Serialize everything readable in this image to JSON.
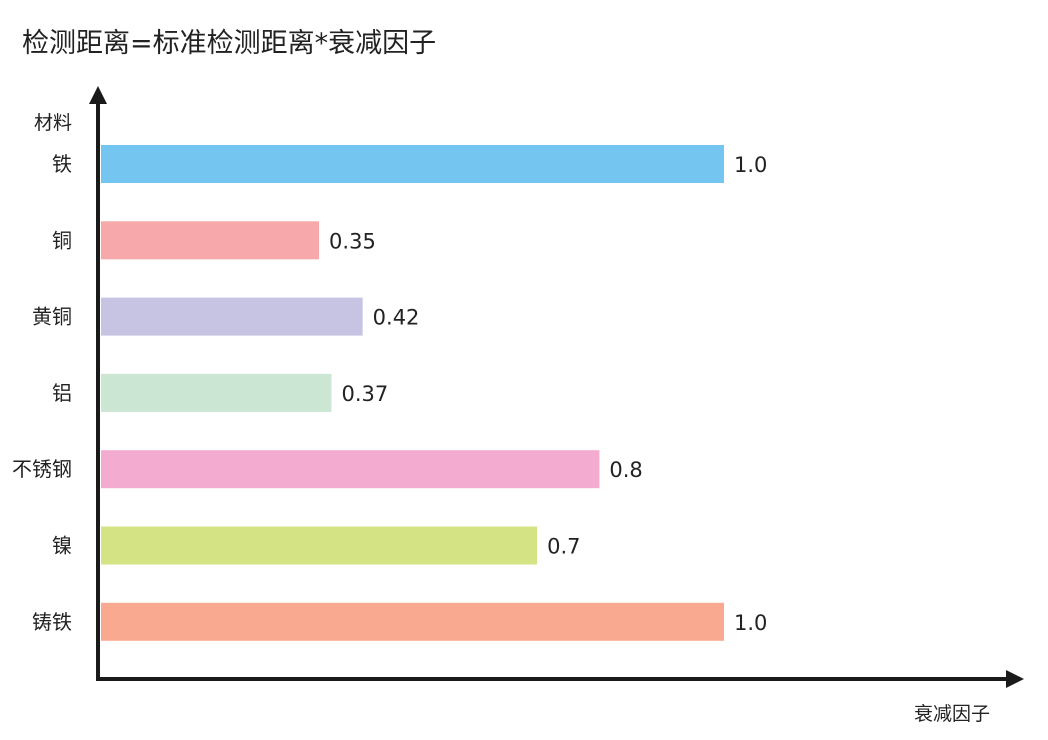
{
  "chart_data": {
    "type": "bar",
    "orientation": "horizontal",
    "title": "检测距离=标准检测距离*衰减因子",
    "xlabel": "衰减因子",
    "ylabel": "材料",
    "xlim": [
      0,
      1.0
    ],
    "grid": false,
    "categories": [
      "铁",
      "铜",
      "黄铜",
      "铝",
      "不锈钢",
      "镍",
      "铸铁"
    ],
    "values": [
      1.0,
      0.35,
      0.42,
      0.37,
      0.8,
      0.7,
      1.0
    ],
    "value_labels": [
      "1.0",
      "0.35",
      "0.42",
      "0.37",
      "0.8",
      "0.7",
      "1.0"
    ],
    "colors": [
      "#74c5ef",
      "#f6a8aa",
      "#c6c4e2",
      "#cce6d4",
      "#f3abcf",
      "#d4e384",
      "#f8a98f"
    ],
    "axis_color": "#1a1a1a"
  }
}
